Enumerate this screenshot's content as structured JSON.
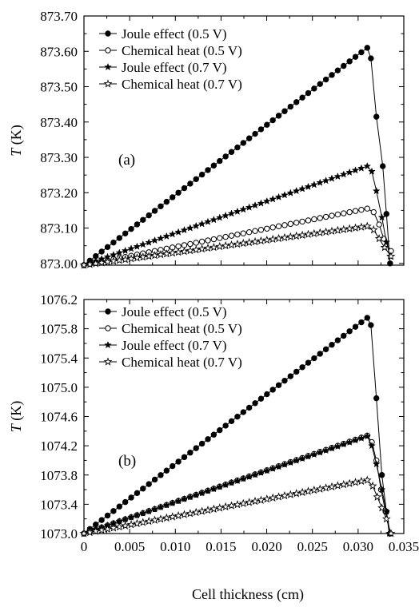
{
  "chart_data": [
    {
      "type": "line",
      "panel_label": "(a)",
      "ylabel_italic": "T",
      "ylabel_unit": " (K)",
      "xlim": [
        0,
        0.035
      ],
      "ylim": [
        872.995,
        873.7
      ],
      "yticks": [
        873.0,
        873.1,
        873.2,
        873.3,
        873.4,
        873.5,
        873.6,
        873.7
      ],
      "ytick_labels": [
        "873.00",
        "873.10",
        "873.20",
        "873.30",
        "873.40",
        "873.50",
        "873.60",
        "873.70"
      ],
      "legend_position": "top-left",
      "series": [
        {
          "name": "Joule effect (0.5 V)",
          "marker": "filled-circle",
          "peak_x": 0.031,
          "peak_y": 873.61,
          "end_x": 0.0335,
          "end_y": 873.0,
          "extra_points": [
            [
              0.0314,
              873.58
            ],
            [
              0.032,
              873.415
            ],
            [
              0.0327,
              873.275
            ],
            [
              0.0331,
              873.14
            ]
          ]
        },
        {
          "name": "Chemical heat (0.5 V)",
          "marker": "open-circle",
          "peak_x": 0.031,
          "peak_y": 873.155,
          "end_x": 0.0336,
          "end_y": 873.035,
          "extra_points": [
            [
              0.0317,
              873.145
            ],
            [
              0.0323,
              873.11
            ],
            [
              0.0328,
              873.07
            ]
          ]
        },
        {
          "name": "Joule effect (0.7 V)",
          "marker": "filled-star",
          "peak_x": 0.031,
          "peak_y": 873.275,
          "end_x": 0.0335,
          "end_y": 873.02,
          "extra_points": [
            [
              0.0315,
              873.26
            ],
            [
              0.032,
              873.205
            ],
            [
              0.0326,
              873.13
            ],
            [
              0.0331,
              873.06
            ]
          ]
        },
        {
          "name": "Chemical heat (0.7 V)",
          "marker": "open-star",
          "peak_x": 0.031,
          "peak_y": 873.105,
          "end_x": 0.0336,
          "end_y": 873.02,
          "extra_points": [
            [
              0.0317,
              873.095
            ],
            [
              0.0323,
              873.07
            ],
            [
              0.0329,
              873.045
            ]
          ]
        }
      ]
    },
    {
      "type": "line",
      "panel_label": "(b)",
      "ylabel_italic": "T",
      "ylabel_unit": " (K)",
      "xlabel": "Cell thickness (cm)",
      "xlim": [
        0,
        0.035
      ],
      "ylim": [
        1073.0,
        1076.2
      ],
      "xticks": [
        0,
        0.005,
        0.01,
        0.015,
        0.02,
        0.025,
        0.03,
        0.035
      ],
      "xtick_labels": [
        "0",
        "0.005",
        "0.010",
        "0.015",
        "0.020",
        "0.025",
        "0.030",
        "0.035"
      ],
      "yticks": [
        1073.0,
        1073.4,
        1073.8,
        1074.2,
        1074.6,
        1075.0,
        1075.4,
        1075.8,
        1076.2
      ],
      "ytick_labels": [
        "1073.0",
        "1073.4",
        "1073.8",
        "1074.2",
        "1074.6",
        "1075.0",
        "1075.4",
        "1075.8",
        "1076.2"
      ],
      "legend_position": "top-left",
      "series": [
        {
          "name": "Joule effect (0.5 V)",
          "marker": "filled-circle",
          "peak_x": 0.031,
          "peak_y": 1075.95,
          "end_x": 0.0335,
          "end_y": 1073.0,
          "extra_points": [
            [
              0.0314,
              1075.85
            ],
            [
              0.032,
              1074.85
            ],
            [
              0.0326,
              1073.8
            ],
            [
              0.0331,
              1073.3
            ]
          ]
        },
        {
          "name": "Chemical heat (0.5 V)",
          "marker": "open-circle",
          "peak_x": 0.031,
          "peak_y": 1074.34,
          "end_x": 0.0335,
          "end_y": 1073.0,
          "extra_points": [
            [
              0.0315,
              1074.25
            ],
            [
              0.032,
              1074.0
            ],
            [
              0.0325,
              1073.6
            ],
            [
              0.033,
              1073.3
            ]
          ]
        },
        {
          "name": "Joule effect (0.7 V)",
          "marker": "filled-star",
          "peak_x": 0.031,
          "peak_y": 1074.33,
          "end_x": 0.0334,
          "end_y": 1073.0,
          "extra_points": [
            [
              0.0315,
              1074.2
            ],
            [
              0.032,
              1073.95
            ],
            [
              0.0326,
              1073.6
            ],
            [
              0.0331,
              1073.3
            ]
          ]
        },
        {
          "name": "Chemical heat (0.7 V)",
          "marker": "open-star",
          "peak_x": 0.031,
          "peak_y": 1073.73,
          "end_x": 0.0336,
          "end_y": 1073.0,
          "extra_points": [
            [
              0.0316,
              1073.65
            ],
            [
              0.0321,
              1073.5
            ],
            [
              0.0326,
              1073.35
            ],
            [
              0.0331,
              1073.2
            ]
          ]
        }
      ]
    }
  ]
}
